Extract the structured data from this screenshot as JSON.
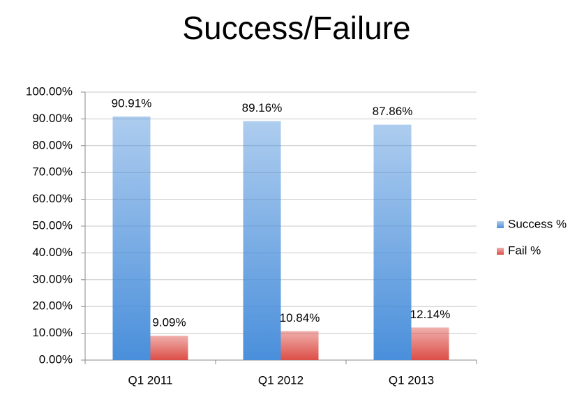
{
  "chart_data": {
    "type": "bar",
    "title": "Success/Failure",
    "categories": [
      "Q1 2011",
      "Q1 2012",
      "Q1 2013"
    ],
    "series": [
      {
        "name": "Success %",
        "color": "#4a8fdb",
        "values": [
          90.91,
          89.16,
          87.86
        ],
        "value_labels": [
          "90.91%",
          "89.16%",
          "87.86%"
        ]
      },
      {
        "name": "Fail %",
        "color": "#dc4e47",
        "values": [
          9.09,
          10.84,
          12.14
        ],
        "value_labels": [
          "9.09%",
          "10.84%",
          "12.14%"
        ]
      }
    ],
    "ylim": [
      0,
      100
    ],
    "yticks": [
      {
        "value": 0,
        "label": "0.00%"
      },
      {
        "value": 10,
        "label": "10.00%"
      },
      {
        "value": 20,
        "label": "20.00%"
      },
      {
        "value": 30,
        "label": "30.00%"
      },
      {
        "value": 40,
        "label": "40.00%"
      },
      {
        "value": 50,
        "label": "50.00%"
      },
      {
        "value": 60,
        "label": "60.00%"
      },
      {
        "value": 70,
        "label": "70.00%"
      },
      {
        "value": 80,
        "label": "80.00%"
      },
      {
        "value": 90,
        "label": "90.00%"
      },
      {
        "value": 100,
        "label": "100.00%"
      }
    ],
    "grid": true,
    "legend": "right"
  }
}
